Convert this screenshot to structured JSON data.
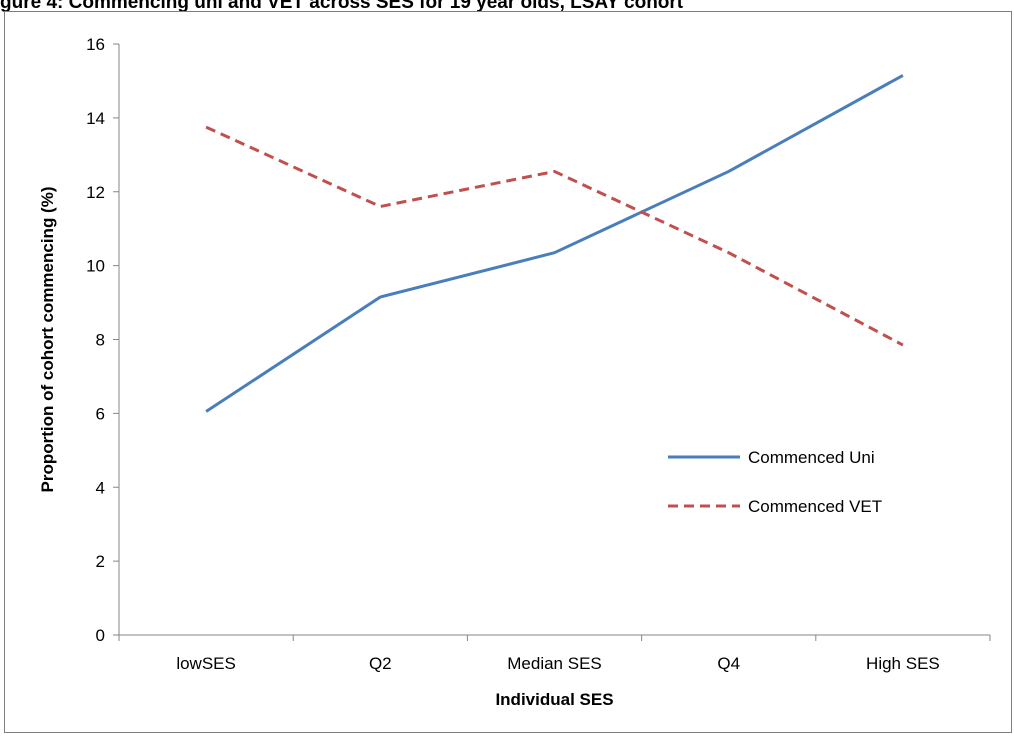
{
  "figure_title_partial": "gure 4: Commencing uni and VET across SES for 19 year olds, LSAY cohort",
  "chart_data": {
    "type": "line",
    "title": "",
    "xlabel": "Individual  SES",
    "ylabel": "Proportion of cohort commencing (%)",
    "categories": [
      "lowSES",
      "Q2",
      "Median SES",
      "Q4",
      "High SES"
    ],
    "ylim": [
      0,
      16
    ],
    "yticks": [
      0,
      2,
      4,
      6,
      8,
      10,
      12,
      14,
      16
    ],
    "grid": false,
    "legend_position": "right",
    "series": [
      {
        "name": "Commenced Uni",
        "values": [
          6.05,
          9.15,
          10.35,
          12.55,
          15.15
        ],
        "color": "#4a7ebb",
        "style": "solid"
      },
      {
        "name": "Commenced VET",
        "values": [
          13.75,
          11.6,
          12.55,
          10.35,
          7.85
        ],
        "color": "#c0504d",
        "style": "dashed"
      }
    ]
  }
}
